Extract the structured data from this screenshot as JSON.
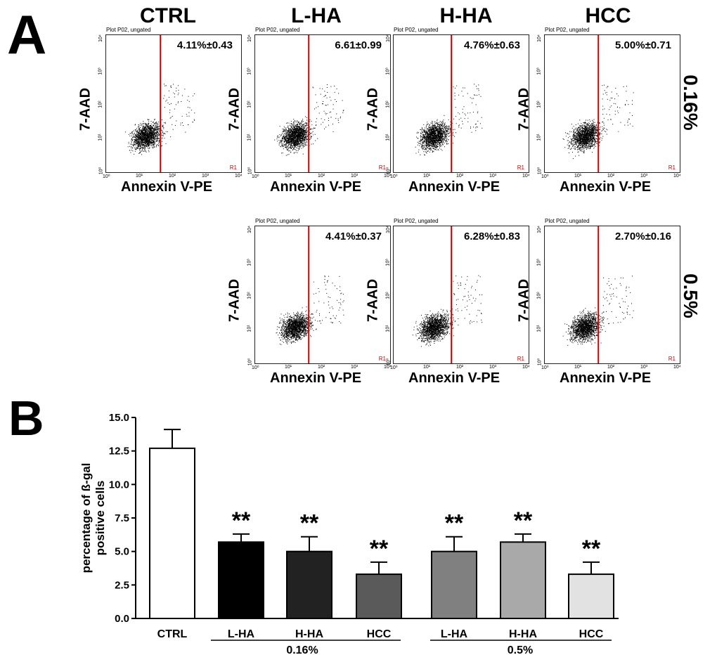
{
  "panels": {
    "a_letter": "A",
    "b_letter": "B"
  },
  "flow": {
    "columns": [
      "CTRL",
      "L-HA",
      "H-HA",
      "HCC"
    ],
    "rows": [
      "0.16%",
      "0.5%"
    ],
    "plot_title": "Plot P02, ungated",
    "gate_label": "R1",
    "y_axis_title": "7-AAD",
    "x_axis_title": "Annexin V-PE",
    "y_ticks": [
      "10⁰",
      "10¹",
      "10²",
      "10³",
      "10⁴"
    ],
    "x_ticks": [
      "10⁰",
      "10¹",
      "10²",
      "10³",
      "10⁴"
    ],
    "plots": [
      {
        "group": "CTRL",
        "row": "0.16%",
        "pct": "4.11%±0.43"
      },
      {
        "group": "L-HA",
        "row": "0.16%",
        "pct": "6.61±0.99"
      },
      {
        "group": "H-HA",
        "row": "0.16%",
        "pct": "4.76%±0.63"
      },
      {
        "group": "HCC",
        "row": "0.16%",
        "pct": "5.00%±0.71"
      },
      {
        "group": "L-HA",
        "row": "0.5%",
        "pct": "4.41%±0.37"
      },
      {
        "group": "H-HA",
        "row": "0.5%",
        "pct": "6.28%±0.83"
      },
      {
        "group": "HCC",
        "row": "0.5%",
        "pct": "2.70%±0.16"
      }
    ]
  },
  "chart_data": {
    "type": "bar",
    "title": "",
    "ylabel": "percentage of ß-gal positive cells",
    "ylabel_lines": [
      "percentage of ß-gal",
      "positive cells"
    ],
    "xlabel": "",
    "ylim": [
      0,
      15
    ],
    "yticks": [
      "0.0",
      "2.5",
      "5.0",
      "7.5",
      "10.0",
      "12.5",
      "15.0"
    ],
    "categories": [
      "CTRL",
      "L-HA",
      "H-HA",
      "HCC",
      "L-HA",
      "H-HA",
      "HCC"
    ],
    "values": [
      12.7,
      5.7,
      5.0,
      3.3,
      5.0,
      5.7,
      3.3
    ],
    "errors": [
      1.4,
      0.6,
      1.1,
      0.9,
      1.1,
      0.6,
      0.9
    ],
    "significance": [
      "",
      "**",
      "**",
      "**",
      "**",
      "**",
      "**"
    ],
    "group_labels": [
      "0.16%",
      "0.5%"
    ],
    "colors": [
      "#ffffff",
      "#000000",
      "#222222",
      "#5a5a5a",
      "#808080",
      "#a9a9a9",
      "#e2e2e2"
    ]
  }
}
